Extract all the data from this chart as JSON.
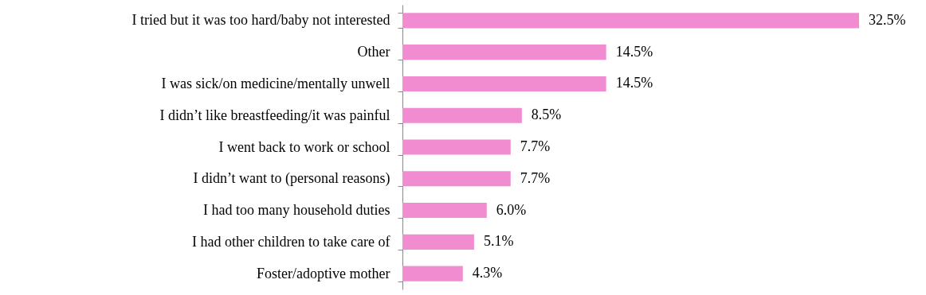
{
  "chart_data": {
    "type": "bar",
    "orientation": "horizontal",
    "categories": [
      "I tried but it was too hard/baby not interested",
      "Other",
      "I was sick/on medicine/mentally unwell",
      "I didn’t like breastfeeding/it was painful",
      "I went back to work or school",
      "I didn’t want to (personal reasons)",
      "I had too many household duties",
      "I had other children to take care of",
      "Foster/adoptive mother"
    ],
    "values": [
      32.5,
      14.5,
      14.5,
      8.5,
      7.7,
      7.7,
      6.0,
      5.1,
      4.3
    ],
    "value_labels": [
      "32.5%",
      "14.5%",
      "14.5%",
      "8.5%",
      "7.7%",
      "7.7%",
      "6.0%",
      "5.1%",
      "4.3%"
    ],
    "color": "#f08ccf",
    "grid": false
  }
}
